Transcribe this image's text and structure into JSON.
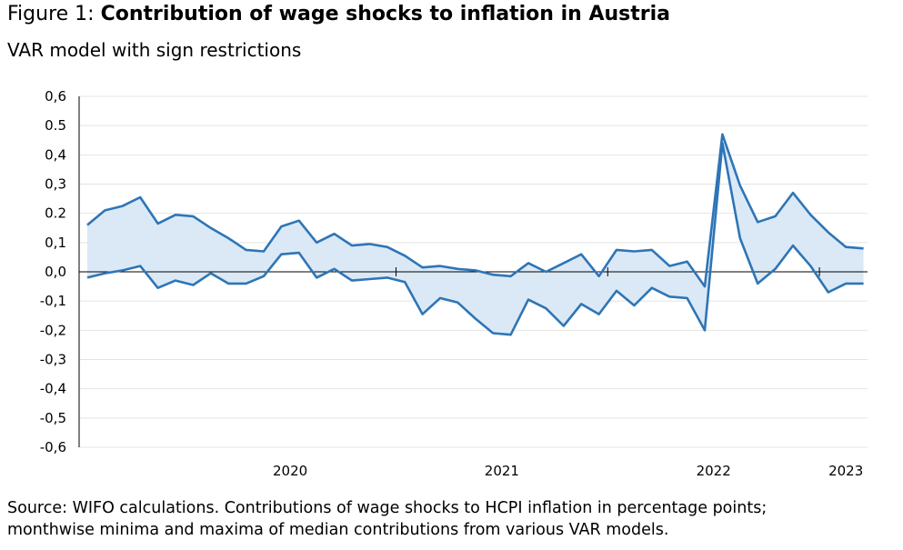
{
  "figure": {
    "prefix": "Figure 1: ",
    "title": "Contribution of wage shocks to inflation in Austria",
    "subtitle": "VAR model with sign restrictions"
  },
  "source": {
    "line1": "Source: WIFO calculations. Contributions of wage shocks to HCPI inflation in percentage points;",
    "line2": "monthwise minima and maxima of median contributions from various VAR models."
  },
  "chart_data": {
    "type": "area",
    "x": [
      "2019-07",
      "2019-08",
      "2019-09",
      "2019-10",
      "2019-11",
      "2019-12",
      "2020-01",
      "2020-02",
      "2020-03",
      "2020-04",
      "2020-05",
      "2020-06",
      "2020-07",
      "2020-08",
      "2020-09",
      "2020-10",
      "2020-11",
      "2020-12",
      "2021-01",
      "2021-02",
      "2021-03",
      "2021-04",
      "2021-05",
      "2021-06",
      "2021-07",
      "2021-08",
      "2021-09",
      "2021-10",
      "2021-11",
      "2021-12",
      "2022-01",
      "2022-02",
      "2022-03",
      "2022-04",
      "2022-05",
      "2022-06",
      "2022-07",
      "2022-08",
      "2022-09",
      "2022-10",
      "2022-11",
      "2022-12",
      "2023-01",
      "2023-02",
      "2023-03"
    ],
    "series": [
      {
        "values": [
          0.16,
          0.21,
          0.225,
          0.255,
          0.165,
          0.195,
          0.19,
          0.15,
          0.115,
          0.075,
          0.07,
          0.155,
          0.175,
          0.1,
          0.13,
          0.09,
          0.095,
          0.085,
          0.055,
          0.015,
          0.02,
          0.01,
          0.005,
          -0.01,
          -0.015,
          0.03,
          0.0,
          0.03,
          0.06,
          -0.015,
          0.075,
          0.07,
          0.075,
          0.02,
          0.035,
          -0.05,
          0.47,
          0.295,
          0.17,
          0.19,
          0.27,
          0.195,
          0.135,
          0.085,
          0.08
        ],
        "color": "#2e75b6"
      },
      {
        "values": [
          -0.02,
          -0.005,
          0.005,
          0.02,
          -0.055,
          -0.03,
          -0.045,
          -0.005,
          -0.04,
          -0.04,
          -0.015,
          0.06,
          0.065,
          -0.02,
          0.01,
          -0.03,
          -0.025,
          -0.02,
          -0.035,
          -0.145,
          -0.09,
          -0.105,
          -0.16,
          -0.21,
          -0.215,
          -0.095,
          -0.125,
          -0.185,
          -0.11,
          -0.145,
          -0.065,
          -0.115,
          -0.055,
          -0.085,
          -0.09,
          -0.2,
          0.44,
          0.115,
          -0.04,
          0.01,
          0.09,
          0.02,
          -0.07,
          -0.04,
          -0.04
        ],
        "color": "#2e75b6"
      }
    ],
    "y_tick_labels": [
      "0,6",
      "0.5",
      "0,4",
      "0,3",
      "0.2",
      "0,1",
      "0,0",
      "-0,1",
      "-0,2",
      "-0,3",
      "-0,4",
      "-0,5",
      "-0,6"
    ],
    "x_tick_labels": [
      "2020",
      "2021",
      "2022",
      "2023"
    ],
    "ylim": [
      -0.6,
      0.6
    ],
    "fill_color": "#dbe9f6",
    "line_color": "#2e75b6",
    "grid": true
  }
}
